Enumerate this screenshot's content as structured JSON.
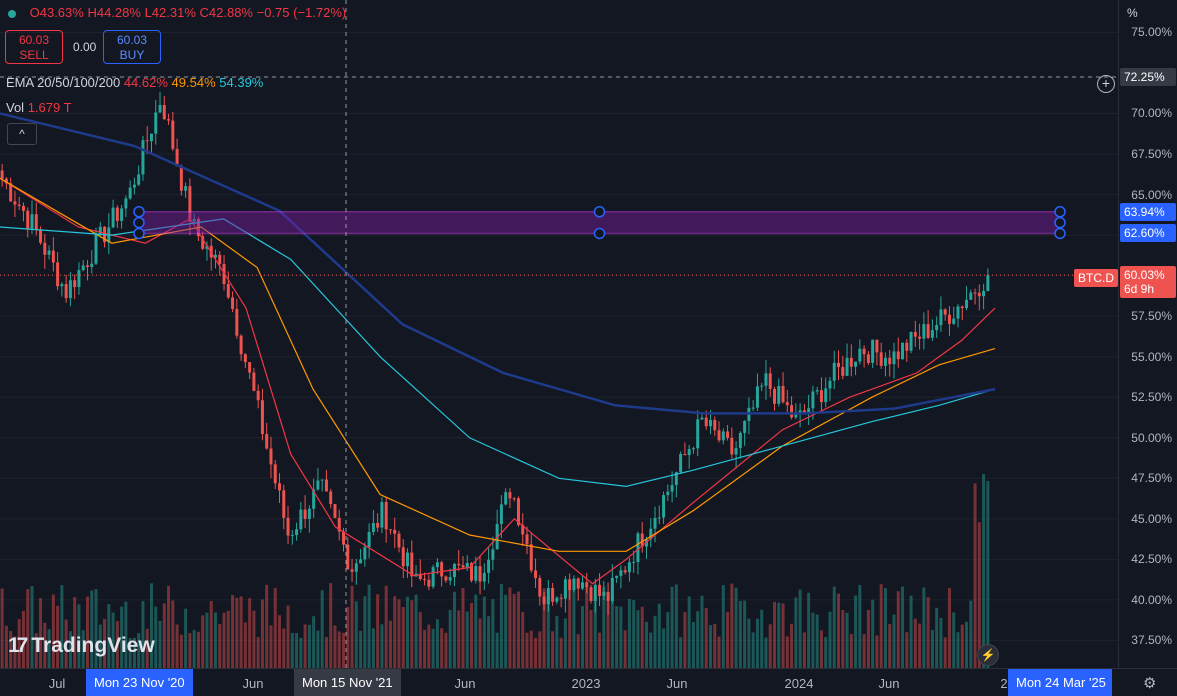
{
  "header": {
    "ohlc_text_o": "O43.63%",
    "ohlc_text_h": "H44.28%",
    "ohlc_text_l": "L42.31%",
    "ohlc_text_c": "C42.88%",
    "change_text": "−0.75 (−1.72%)",
    "sell_price": "60.03",
    "sell_label": "SELL",
    "spread": "0.00",
    "buy_price": "60.03",
    "buy_label": "BUY",
    "ema_label": "EMA 20/50/100/200",
    "ema20_value": "44.62%",
    "ema50_value": "49.54%",
    "ema100_value": "54.39%",
    "ema200_value": "",
    "vol_label": "Vol",
    "vol_value": "1.679 T",
    "collapse_glyph": "^",
    "logo_text": "TradingView",
    "logo_mark": "17",
    "flash_glyph": "⚡",
    "settings_glyph": "⚙",
    "plus_glyph": "+",
    "pct_header": "%"
  },
  "colors": {
    "up": "#26a69a",
    "down": "#ef5350",
    "ema20": "#f23645",
    "ema50": "#ff9800",
    "ema100": "#26c6da",
    "ema200": "#1e3a8a",
    "zone_fill": "#7b1fa2",
    "zone_line": "#e040fb",
    "handle": "#2962ff"
  },
  "y_axis": {
    "ticks": [
      "75.00%",
      "72.25%",
      "70.00%",
      "67.50%",
      "65.00%",
      "62.50%",
      "60.00%",
      "57.50%",
      "55.00%",
      "52.50%",
      "50.00%",
      "47.50%",
      "45.00%",
      "42.50%",
      "40.00%",
      "37.50%"
    ],
    "crosshair_label": "72.25%",
    "zone_top_label": "63.94%",
    "zone_bottom_label": "62.60%",
    "last_price_label": "60.03%",
    "countdown_label": "6d 9h",
    "symbol": "BTC.D"
  },
  "x_axis": {
    "ticks": [
      "Jul",
      "Mon 23 Nov '20",
      "Jun",
      "Mon 15 Nov '21",
      "Jun",
      "2023",
      "Jun",
      "2024",
      "Jun",
      "2"
    ],
    "highlight_start": "Mon 23 Nov '20",
    "highlight_end": "Mon 24 Mar '25",
    "crosshair_date": "Mon 15 Nov '21"
  },
  "chart_data": {
    "type": "candlestick",
    "symbol": "BTC.D",
    "interval": "weekly",
    "ylim": [
      35.8,
      77.0
    ],
    "y_unit": "%",
    "zone": {
      "top": 63.94,
      "bottom": 62.6
    },
    "last_price": 60.03,
    "crosshair_value": 72.25,
    "anchors": [
      {
        "date": "2020-05",
        "close": 66.0
      },
      {
        "date": "2020-07",
        "close": 63.0
      },
      {
        "date": "2020-08",
        "close": 59.0
      },
      {
        "date": "2020-10",
        "close": 62.0
      },
      {
        "date": "2020-12",
        "close": 65.0
      },
      {
        "date": "2021-01",
        "close": 71.0
      },
      {
        "date": "2021-02",
        "close": 63.0
      },
      {
        "date": "2021-03",
        "close": 60.0
      },
      {
        "date": "2021-04",
        "close": 52.0
      },
      {
        "date": "2021-05",
        "close": 44.0
      },
      {
        "date": "2021-07",
        "close": 47.0
      },
      {
        "date": "2021-08",
        "close": 42.0
      },
      {
        "date": "2021-10",
        "close": 45.5
      },
      {
        "date": "2021-12",
        "close": 41.0
      },
      {
        "date": "2022-02",
        "close": 42.0
      },
      {
        "date": "2022-04",
        "close": 41.5
      },
      {
        "date": "2022-06",
        "close": 47.0
      },
      {
        "date": "2022-08",
        "close": 40.0
      },
      {
        "date": "2022-10",
        "close": 41.5
      },
      {
        "date": "2022-12",
        "close": 40.0
      },
      {
        "date": "2023-01",
        "close": 43.5
      },
      {
        "date": "2023-03",
        "close": 47.0
      },
      {
        "date": "2023-06",
        "close": 51.0
      },
      {
        "date": "2023-08",
        "close": 49.0
      },
      {
        "date": "2023-10",
        "close": 53.5
      },
      {
        "date": "2023-12",
        "close": 51.0
      },
      {
        "date": "2024-02",
        "close": 53.5
      },
      {
        "date": "2024-04",
        "close": 55.5
      },
      {
        "date": "2024-06",
        "close": 55.0
      },
      {
        "date": "2024-08",
        "close": 56.5
      },
      {
        "date": "2024-10",
        "close": 58.0
      },
      {
        "date": "2024-11",
        "close": 60.03
      }
    ],
    "ema_lines": [
      {
        "name": "EMA 20",
        "points": [
          [
            0,
            66.0
          ],
          [
            0.07,
            63.0
          ],
          [
            0.13,
            62.0
          ],
          [
            0.17,
            63.5
          ],
          [
            0.22,
            58.0
          ],
          [
            0.26,
            49.0
          ],
          [
            0.3,
            44.5
          ],
          [
            0.37,
            41.5
          ],
          [
            0.42,
            42.0
          ],
          [
            0.46,
            45.0
          ],
          [
            0.53,
            41.0
          ],
          [
            0.56,
            42.5
          ],
          [
            0.62,
            46.0
          ],
          [
            0.7,
            50.5
          ],
          [
            0.76,
            52.5
          ],
          [
            0.82,
            54.0
          ],
          [
            0.86,
            56.0
          ],
          [
            0.89,
            58.0
          ]
        ]
      },
      {
        "name": "EMA 50",
        "points": [
          [
            0,
            66.0
          ],
          [
            0.1,
            62.0
          ],
          [
            0.18,
            63.0
          ],
          [
            0.23,
            60.5
          ],
          [
            0.28,
            53.0
          ],
          [
            0.34,
            46.5
          ],
          [
            0.42,
            44.0
          ],
          [
            0.5,
            43.0
          ],
          [
            0.56,
            43.0
          ],
          [
            0.62,
            45.5
          ],
          [
            0.7,
            49.5
          ],
          [
            0.78,
            52.5
          ],
          [
            0.84,
            54.5
          ],
          [
            0.89,
            55.5
          ]
        ]
      },
      {
        "name": "EMA 100",
        "points": [
          [
            0,
            63.0
          ],
          [
            0.1,
            62.5
          ],
          [
            0.2,
            63.5
          ],
          [
            0.26,
            61.0
          ],
          [
            0.34,
            55.0
          ],
          [
            0.42,
            50.0
          ],
          [
            0.5,
            47.5
          ],
          [
            0.56,
            47.0
          ],
          [
            0.62,
            48.0
          ],
          [
            0.7,
            49.5
          ],
          [
            0.78,
            51.0
          ],
          [
            0.84,
            52.0
          ],
          [
            0.89,
            53.0
          ]
        ]
      },
      {
        "name": "EMA 200",
        "points": [
          [
            0,
            70.0
          ],
          [
            0.12,
            68.0
          ],
          [
            0.25,
            64.0
          ],
          [
            0.36,
            57.0
          ],
          [
            0.45,
            54.0
          ],
          [
            0.55,
            52.0
          ],
          [
            0.63,
            51.5
          ],
          [
            0.72,
            51.5
          ],
          [
            0.8,
            51.8
          ],
          [
            0.89,
            53.0
          ]
        ]
      }
    ]
  }
}
